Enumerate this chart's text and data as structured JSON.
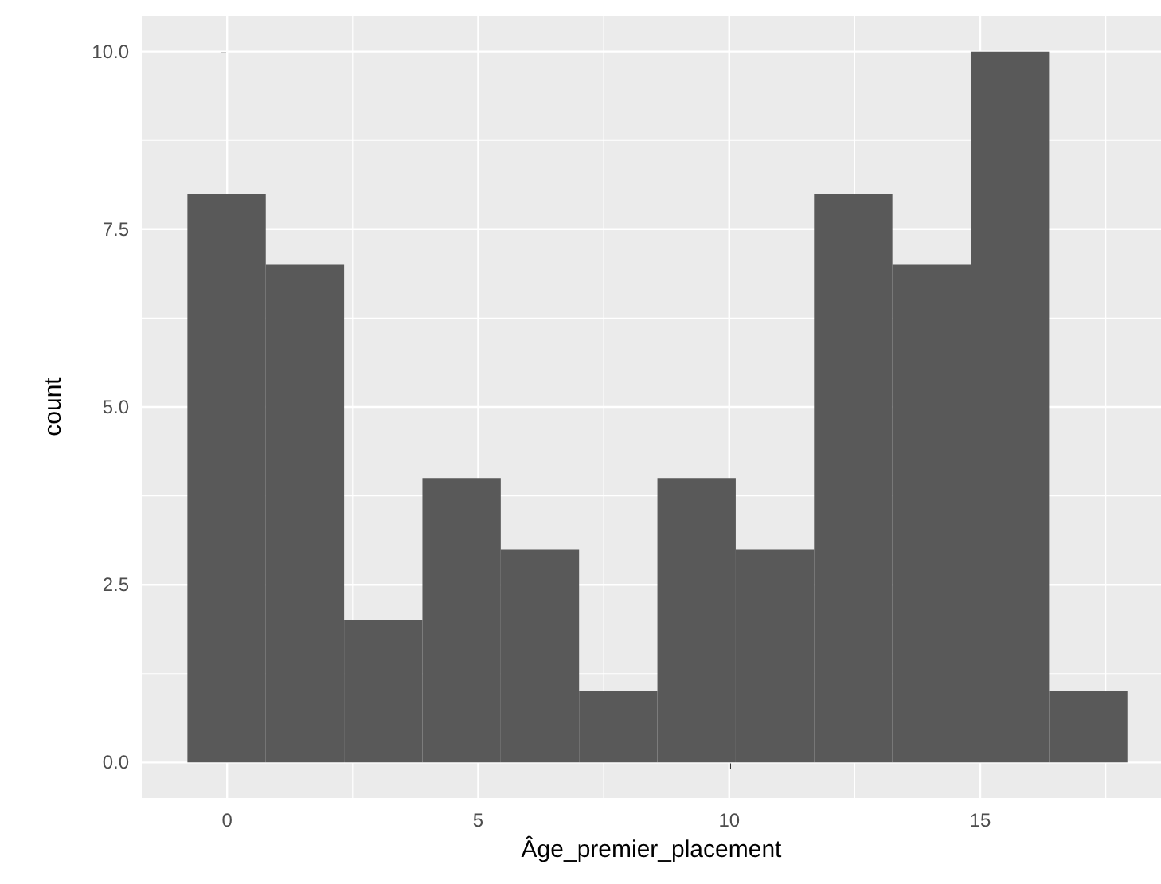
{
  "chart_data": {
    "type": "histogram",
    "xlabel": "Âge_premier_placement",
    "ylabel": "count",
    "bins": [
      -0.79,
      0.77,
      2.33,
      3.89,
      5.45,
      7.01,
      8.57,
      10.13,
      11.69,
      13.25,
      14.81,
      16.37,
      17.93
    ],
    "values": [
      8,
      7,
      2,
      4,
      3,
      1,
      4,
      3,
      8,
      7,
      10,
      1
    ],
    "color": "#595959",
    "xlim": [
      -1.7,
      18.6
    ],
    "xticks": [
      0,
      5,
      10,
      15
    ],
    "ylim": [
      -0.5,
      10.5
    ],
    "yticks": [
      {
        "value": 0,
        "label": "0.0"
      },
      {
        "value": 2.5,
        "label": "2.5"
      },
      {
        "value": 5,
        "label": "5.0"
      },
      {
        "value": 7.5,
        "label": "7.5"
      },
      {
        "value": 10,
        "label": "10.0"
      }
    ],
    "grid": true
  }
}
